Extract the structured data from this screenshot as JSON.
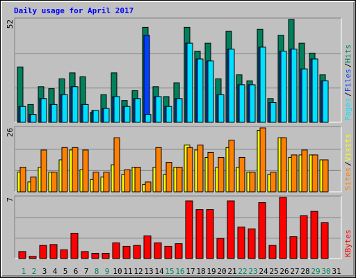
{
  "chart_data": [
    {
      "type": "bar",
      "title": "Daily usage for April 2017",
      "separator": "/",
      "ylim": [
        0,
        52
      ],
      "yticks": [
        52
      ],
      "grid_divisions": 3,
      "series": [
        {
          "name": "Hits",
          "color": "#00805c",
          "values": [
            28,
            9,
            18,
            17,
            22,
            25,
            23,
            5,
            14,
            25,
            11,
            16,
            48,
            18,
            13,
            20,
            48,
            36,
            40,
            22,
            46,
            24,
            21,
            47,
            12,
            44,
            52,
            40,
            35,
            24,
            0
          ]
        },
        {
          "name": "Files",
          "color": "#0040ff",
          "values": [
            8,
            4,
            12,
            9,
            14,
            18,
            9,
            6,
            7,
            13,
            8,
            12,
            44,
            13,
            8,
            12,
            40,
            32,
            31,
            14,
            37,
            19,
            19,
            38,
            10,
            36,
            37,
            27,
            32,
            21,
            0
          ]
        },
        {
          "name": "Pages",
          "color": "#00e0ff",
          "values": [
            8,
            4,
            12,
            9,
            14,
            18,
            9,
            6,
            7,
            13,
            8,
            12,
            4,
            13,
            8,
            12,
            40,
            32,
            31,
            14,
            37,
            19,
            19,
            38,
            10,
            36,
            37,
            27,
            32,
            21,
            0
          ]
        }
      ]
    },
    {
      "type": "bar",
      "separator": "/",
      "ylim": [
        0,
        26
      ],
      "yticks": [
        26
      ],
      "grid_divisions": 3,
      "series": [
        {
          "name": "Visits",
          "color": "#ffff00",
          "values": [
            8,
            4,
            10,
            8,
            13,
            17,
            9,
            5,
            6,
            11,
            7,
            10,
            3,
            10,
            7,
            10,
            19,
            17,
            14,
            10,
            18,
            10,
            8,
            25,
            7,
            22,
            14,
            15,
            15,
            13,
            0
          ]
        },
        {
          "name": "Sites",
          "color": "#ff8000",
          "values": [
            10,
            6,
            17,
            8,
            18,
            18,
            17,
            8,
            8,
            22,
            9,
            10,
            4,
            18,
            12,
            10,
            18,
            19,
            16,
            14,
            21,
            14,
            8,
            26,
            8,
            22,
            15,
            17,
            15,
            13,
            0
          ]
        }
      ]
    },
    {
      "type": "bar",
      "ylim": [
        0,
        7
      ],
      "yticks": [
        7
      ],
      "grid_divisions": 3,
      "series": [
        {
          "name": "KBytes",
          "color": "#ff0000",
          "values": [
            0.8,
            0.24,
            1.5,
            1.6,
            1.0,
            2.9,
            0.8,
            0.6,
            0.6,
            1.8,
            1.4,
            1.5,
            2.6,
            1.8,
            1.4,
            1.7,
            6.6,
            5.6,
            5.6,
            2.3,
            6.6,
            3.6,
            3.4,
            6.4,
            1.5,
            7.0,
            2.5,
            4.9,
            5.4,
            4.1,
            0
          ]
        }
      ],
      "categories": [
        "1",
        "2",
        "3",
        "4",
        "5",
        "6",
        "7",
        "8",
        "9",
        "10",
        "11",
        "12",
        "13",
        "14",
        "15",
        "16",
        "17",
        "18",
        "19",
        "20",
        "21",
        "22",
        "23",
        "24",
        "25",
        "26",
        "27",
        "28",
        "29",
        "30",
        "31"
      ],
      "category_colors": [
        "#00805c",
        "#00805c",
        "#000000",
        "#000000",
        "#000000",
        "#000000",
        "#000000",
        "#00805c",
        "#00805c",
        "#000000",
        "#000000",
        "#000000",
        "#000000",
        "#000000",
        "#00805c",
        "#00805c",
        "#000000",
        "#000000",
        "#000000",
        "#000000",
        "#000000",
        "#00805c",
        "#00805c",
        "#000000",
        "#000000",
        "#000000",
        "#000000",
        "#000000",
        "#00805c",
        "#00805c",
        "#000000"
      ]
    }
  ]
}
